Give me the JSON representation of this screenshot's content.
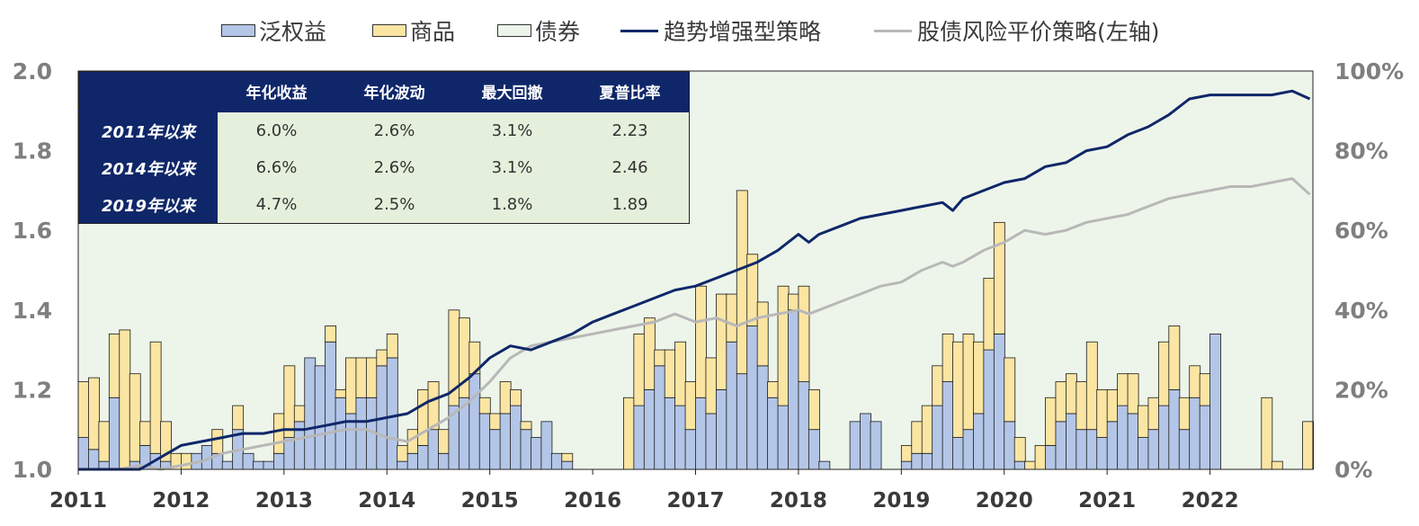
{
  "legend": {
    "items": [
      {
        "label": "泛权益",
        "kind": "area",
        "color": "#b4c6e7"
      },
      {
        "label": "商品",
        "kind": "area",
        "color": "#fbe5a3"
      },
      {
        "label": "债券",
        "kind": "area",
        "color": "#edf5ea"
      },
      {
        "label": "趋势增强型策略",
        "kind": "line",
        "color": "#0f2769"
      },
      {
        "label": "股债风险平价策略(左轴)",
        "kind": "line",
        "color": "#b8b8b8"
      }
    ]
  },
  "table": {
    "headers": [
      "年化收益",
      "年化波动",
      "最大回撤",
      "夏普比率"
    ],
    "rows": [
      {
        "label": "2011年以来",
        "values": [
          "6.0%",
          "2.6%",
          "3.1%",
          "2.23"
        ]
      },
      {
        "label": "2014年以来",
        "values": [
          "6.6%",
          "2.6%",
          "3.1%",
          "2.46"
        ]
      },
      {
        "label": "2019年以来",
        "values": [
          "4.7%",
          "2.5%",
          "1.8%",
          "1.89"
        ]
      }
    ]
  },
  "chart_data": {
    "type": "area",
    "title": "",
    "x_ticks": [
      "2011",
      "2012",
      "2013",
      "2014",
      "2015",
      "2016",
      "2017",
      "2018",
      "2019",
      "2020",
      "2021",
      "2022"
    ],
    "x_range": [
      2011,
      2023
    ],
    "left_axis": {
      "ticks": [
        "1.0",
        "1.2",
        "1.4",
        "1.6",
        "1.8",
        "2.0"
      ],
      "range": [
        1.0,
        2.0
      ]
    },
    "right_axis": {
      "ticks": [
        "0%",
        "20%",
        "40%",
        "60%",
        "80%",
        "100%"
      ],
      "range": [
        0,
        100
      ]
    },
    "colors": {
      "equity": "#b4c6e7",
      "commodity": "#fbe5a3",
      "bond": "#edf5ea",
      "trend": "#0f2769",
      "parity": "#b8b8b8",
      "axis_text": "#7f7f7f"
    },
    "allocation_series": {
      "step": 0.1,
      "x": [
        2011.0,
        2011.1,
        2011.2,
        2011.3,
        2011.4,
        2011.5,
        2011.6,
        2011.7,
        2011.8,
        2011.9,
        2012.0,
        2012.1,
        2012.2,
        2012.3,
        2012.4,
        2012.5,
        2012.6,
        2012.7,
        2012.8,
        2012.9,
        2013.0,
        2013.1,
        2013.2,
        2013.3,
        2013.4,
        2013.5,
        2013.6,
        2013.7,
        2013.8,
        2013.9,
        2014.0,
        2014.1,
        2014.2,
        2014.3,
        2014.4,
        2014.5,
        2014.6,
        2014.7,
        2014.8,
        2014.9,
        2015.0,
        2015.1,
        2015.2,
        2015.3,
        2015.4,
        2015.5,
        2015.6,
        2015.7,
        2015.8,
        2015.9,
        2016.0,
        2016.1,
        2016.2,
        2016.3,
        2016.4,
        2016.5,
        2016.6,
        2016.7,
        2016.8,
        2016.9,
        2017.0,
        2017.1,
        2017.2,
        2017.3,
        2017.4,
        2017.5,
        2017.6,
        2017.7,
        2017.8,
        2017.9,
        2018.0,
        2018.1,
        2018.2,
        2018.3,
        2018.4,
        2018.5,
        2018.6,
        2018.7,
        2018.8,
        2018.9,
        2019.0,
        2019.1,
        2019.2,
        2019.3,
        2019.4,
        2019.5,
        2019.6,
        2019.7,
        2019.8,
        2019.9,
        2020.0,
        2020.1,
        2020.2,
        2020.3,
        2020.4,
        2020.5,
        2020.6,
        2020.7,
        2020.8,
        2020.9,
        2021.0,
        2021.1,
        2021.2,
        2021.3,
        2021.4,
        2021.5,
        2021.6,
        2021.7,
        2021.8,
        2021.9,
        2022.0,
        2022.1,
        2022.2,
        2022.3,
        2022.4,
        2022.5,
        2022.6,
        2022.7,
        2022.8,
        2022.9
      ],
      "equity_pct": [
        8,
        5,
        2,
        18,
        0,
        2,
        6,
        4,
        2,
        0,
        0,
        4,
        6,
        4,
        2,
        10,
        4,
        2,
        2,
        4,
        8,
        12,
        28,
        26,
        32,
        18,
        14,
        18,
        18,
        26,
        28,
        2,
        4,
        6,
        10,
        4,
        16,
        18,
        24,
        14,
        10,
        14,
        16,
        10,
        8,
        12,
        4,
        2,
        0,
        0,
        0,
        0,
        0,
        0,
        16,
        20,
        26,
        18,
        16,
        10,
        18,
        14,
        20,
        32,
        24,
        36,
        26,
        18,
        16,
        40,
        22,
        10,
        2,
        0,
        0,
        12,
        14,
        12,
        0,
        0,
        2,
        4,
        4,
        16,
        22,
        8,
        10,
        14,
        30,
        34,
        12,
        2,
        0,
        0,
        6,
        12,
        14,
        10,
        10,
        8,
        12,
        16,
        14,
        8,
        10,
        16,
        20,
        10,
        18,
        16,
        34,
        0,
        0,
        0,
        0,
        0,
        0,
        0,
        0,
        0
      ],
      "commodity_pct": [
        14,
        18,
        10,
        16,
        35,
        22,
        6,
        28,
        10,
        4,
        4,
        0,
        0,
        6,
        0,
        6,
        0,
        0,
        0,
        10,
        18,
        4,
        0,
        0,
        4,
        2,
        14,
        10,
        10,
        4,
        6,
        4,
        6,
        14,
        12,
        6,
        24,
        20,
        8,
        4,
        4,
        8,
        4,
        2,
        0,
        0,
        0,
        2,
        0,
        0,
        0,
        0,
        0,
        18,
        18,
        18,
        4,
        12,
        16,
        12,
        28,
        14,
        24,
        12,
        46,
        18,
        16,
        4,
        30,
        4,
        24,
        10,
        0,
        0,
        0,
        0,
        0,
        0,
        0,
        0,
        4,
        8,
        12,
        10,
        12,
        24,
        24,
        18,
        18,
        28,
        16,
        6,
        2,
        6,
        12,
        10,
        10,
        12,
        22,
        12,
        8,
        8,
        10,
        8,
        8,
        16,
        16,
        8,
        8,
        8,
        0,
        0,
        0,
        0,
        0,
        18,
        2,
        0,
        0,
        12
      ]
    },
    "line_series": {
      "x": [
        2011.0,
        2011.2,
        2011.4,
        2011.6,
        2011.8,
        2012.0,
        2012.2,
        2012.4,
        2012.6,
        2012.8,
        2013.0,
        2013.2,
        2013.4,
        2013.6,
        2013.8,
        2014.0,
        2014.2,
        2014.4,
        2014.6,
        2014.8,
        2015.0,
        2015.2,
        2015.4,
        2015.6,
        2015.8,
        2016.0,
        2016.2,
        2016.4,
        2016.6,
        2016.8,
        2017.0,
        2017.2,
        2017.4,
        2017.6,
        2017.8,
        2018.0,
        2018.1,
        2018.2,
        2018.4,
        2018.6,
        2018.8,
        2019.0,
        2019.2,
        2019.4,
        2019.5,
        2019.6,
        2019.8,
        2020.0,
        2020.2,
        2020.4,
        2020.6,
        2020.8,
        2021.0,
        2021.2,
        2021.4,
        2021.6,
        2021.8,
        2022.0,
        2022.2,
        2022.4,
        2022.6,
        2022.8,
        2022.97
      ],
      "trend": [
        1.0,
        1.0,
        1.0,
        1.0,
        1.03,
        1.06,
        1.07,
        1.08,
        1.09,
        1.09,
        1.1,
        1.1,
        1.11,
        1.12,
        1.12,
        1.13,
        1.14,
        1.17,
        1.19,
        1.23,
        1.28,
        1.31,
        1.3,
        1.32,
        1.34,
        1.37,
        1.39,
        1.41,
        1.43,
        1.45,
        1.46,
        1.48,
        1.5,
        1.52,
        1.55,
        1.59,
        1.57,
        1.59,
        1.61,
        1.63,
        1.64,
        1.65,
        1.66,
        1.67,
        1.65,
        1.68,
        1.7,
        1.72,
        1.73,
        1.76,
        1.77,
        1.8,
        1.81,
        1.84,
        1.86,
        1.89,
        1.93,
        1.94,
        1.94,
        1.94,
        1.94,
        1.95,
        1.93
      ],
      "parity": [
        1.0,
        1.0,
        1.0,
        1.01,
        1.0,
        1.01,
        1.02,
        1.04,
        1.05,
        1.06,
        1.07,
        1.08,
        1.09,
        1.1,
        1.1,
        1.08,
        1.07,
        1.1,
        1.13,
        1.17,
        1.22,
        1.28,
        1.31,
        1.32,
        1.33,
        1.34,
        1.35,
        1.36,
        1.37,
        1.39,
        1.37,
        1.38,
        1.36,
        1.38,
        1.39,
        1.4,
        1.39,
        1.4,
        1.42,
        1.44,
        1.46,
        1.47,
        1.5,
        1.52,
        1.51,
        1.52,
        1.55,
        1.57,
        1.6,
        1.59,
        1.6,
        1.62,
        1.63,
        1.64,
        1.66,
        1.68,
        1.69,
        1.7,
        1.71,
        1.71,
        1.72,
        1.73,
        1.69
      ]
    }
  }
}
